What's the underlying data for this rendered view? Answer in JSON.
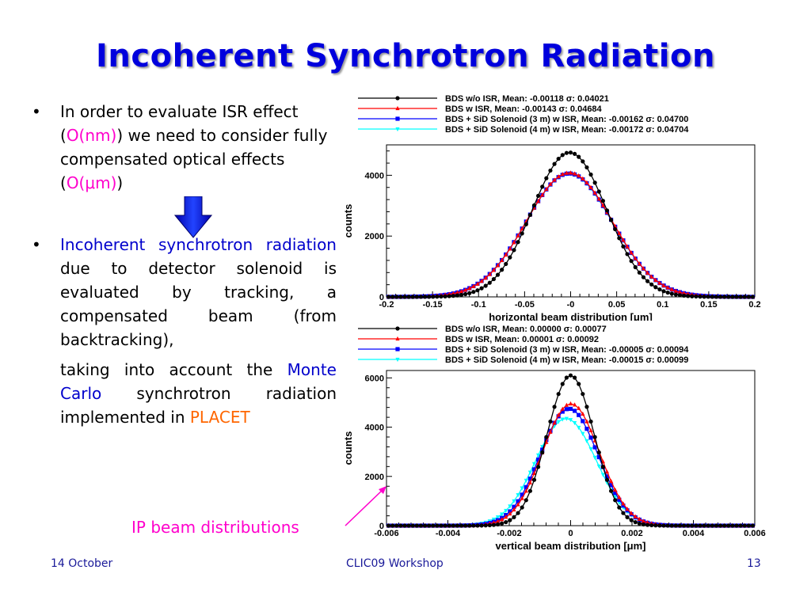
{
  "slide": {
    "title": "Incoherent Synchrotron Radiation",
    "bullet_char": "•",
    "bullet1": {
      "t1": "In order to evaluate ISR effect (",
      "h1": "O(nm)",
      "t2": ") we need to consider fully compensated optical effects (",
      "h2": "O(μm)",
      "t3": ")"
    },
    "bullet2": {
      "h1": "Incoherent synchrotron radiation",
      "t1": " due to detector solenoid is evaluated by tracking, a compensated beam (from backtracking),"
    },
    "bullet3": {
      "t1": "taking into account the ",
      "h1": "Monte Carlo",
      "t2": " synchrotron radiation implemented in ",
      "h2": "PLACET"
    },
    "ip_label": "IP beam distributions",
    "footer_left": "14 October",
    "footer_center": "CLIC09 Workshop",
    "footer_right": "13"
  },
  "colors": {
    "title": "#0000dd",
    "highlight_magenta": "#ff00cc",
    "highlight_blue": "#0000cc",
    "placet": "#ff6600",
    "arrow": "#0000cc",
    "footer": "#1a1a99"
  },
  "chart_data": [
    {
      "type": "line",
      "xlabel": "horizontal beam distribution [μm]",
      "ylabel": "counts",
      "xlim": [
        -0.2,
        0.2
      ],
      "ylim": [
        0,
        5000
      ],
      "xticks": [
        -0.2,
        -0.15,
        -0.1,
        -0.05,
        0,
        0.05,
        0.1,
        0.15,
        0.2
      ],
      "xtick_labels": [
        "-0.2",
        "-0.15",
        "-0.1",
        "-0.05",
        "-0",
        "0.05",
        "0.1",
        "0.15",
        "0.2"
      ],
      "yticks": [
        0,
        2000,
        4000
      ],
      "ytick_labels": [
        "0",
        "2000",
        "4000"
      ],
      "legend_position": "top",
      "series": [
        {
          "label": "BDS w/o ISR,   Mean: -0.00118 σ: 0.04021",
          "color": "#000000",
          "marker": "circle",
          "mean": -0.00118,
          "sigma": 0.04021,
          "peak": 4750
        },
        {
          "label": "BDS w ISR,   Mean: -0.00143 σ: 0.04684",
          "color": "#ff0000",
          "marker": "triangle",
          "mean": -0.00143,
          "sigma": 0.04684,
          "peak": 4080
        },
        {
          "label": "BDS + SiD Solenoid (3 m) w ISR,   Mean: -0.00162 σ: 0.04700",
          "color": "#0000ff",
          "marker": "square",
          "mean": -0.00162,
          "sigma": 0.047,
          "peak": 4060
        },
        {
          "label": "BDS + SiD Solenoid (4 m) w ISR,   Mean: -0.00172 σ: 0.04704",
          "color": "#00ffff",
          "marker": "triangle-down",
          "mean": -0.00172,
          "sigma": 0.04704,
          "peak": 4050
        }
      ]
    },
    {
      "type": "line",
      "xlabel": "vertical beam distribution [μm]",
      "ylabel": "counts",
      "xlim": [
        -0.006,
        0.006
      ],
      "ylim": [
        0,
        6300
      ],
      "xticks": [
        -0.006,
        -0.004,
        -0.002,
        0,
        0.002,
        0.004,
        0.006
      ],
      "xtick_labels": [
        "-0.006",
        "-0.004",
        "-0.002",
        "0",
        "0.002",
        "0.004",
        "0.006"
      ],
      "yticks": [
        0,
        2000,
        4000,
        6000
      ],
      "ytick_labels": [
        "0",
        "2000",
        "4000",
        "6000"
      ],
      "legend_position": "top",
      "series": [
        {
          "label": "BDS w/o ISR,   Mean: 0.00000 σ: 0.00077",
          "color": "#000000",
          "marker": "circle",
          "mean": 0.0,
          "sigma": 0.00077,
          "peak": 6100
        },
        {
          "label": "BDS w ISR,   Mean: 0.00001 σ: 0.00092",
          "color": "#ff0000",
          "marker": "triangle",
          "mean": 1e-05,
          "sigma": 0.00092,
          "peak": 4950
        },
        {
          "label": "BDS + SiD Solenoid (3 m) w ISR,   Mean: -0.00005 σ: 0.00094",
          "color": "#0000ff",
          "marker": "square",
          "mean": -5e-05,
          "sigma": 0.00094,
          "peak": 4750
        },
        {
          "label": "BDS + SiD Solenoid (4 m) w ISR,   Mean: -0.00015 σ: 0.00099",
          "color": "#00ffff",
          "marker": "triangle-down",
          "mean": -0.00015,
          "sigma": 0.00099,
          "peak": 4350
        }
      ]
    }
  ]
}
